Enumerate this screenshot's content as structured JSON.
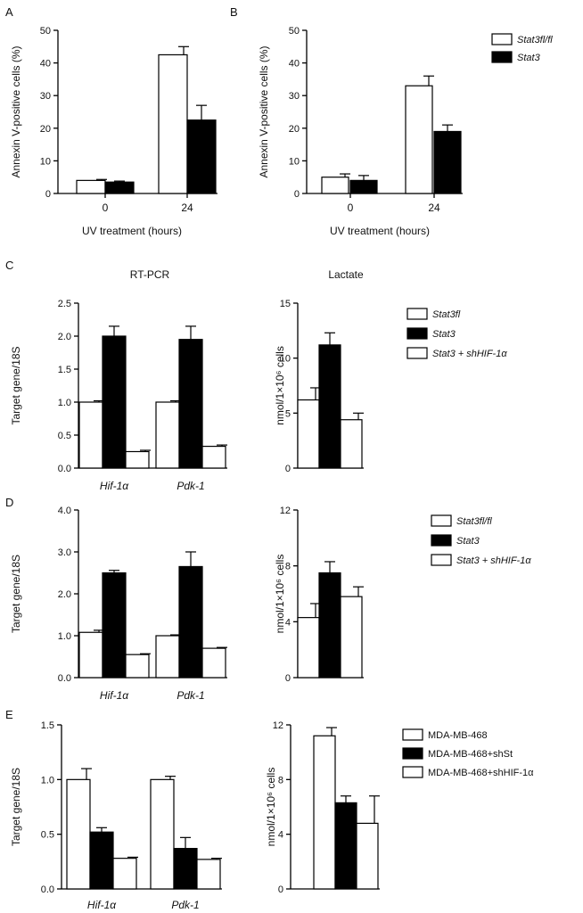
{
  "colors": {
    "white_bar": "#ffffff",
    "black_bar": "#000000",
    "stroke": "#000000"
  },
  "panels": [
    {
      "letter": "A"
    },
    {
      "letter": "B"
    },
    {
      "letter": "C"
    },
    {
      "letter": "D"
    },
    {
      "letter": "E"
    }
  ],
  "column_titles": {
    "left": "RT-PCR",
    "right": "Lactate"
  },
  "legends": {
    "AB": [
      {
        "text": "Stat3fl/fl",
        "fill": "white",
        "italic": true
      },
      {
        "text": "Stat3",
        "fill": "black",
        "italic": true
      }
    ],
    "C": [
      {
        "text": "Stat3fl",
        "fill": "white",
        "italic": true
      },
      {
        "text": "Stat3",
        "fill": "black",
        "italic": true
      },
      {
        "text": "Stat3 + shHIF-1α",
        "fill": "white",
        "italic": true
      }
    ],
    "D": [
      {
        "text": "Stat3fl/fl",
        "fill": "white",
        "italic": true
      },
      {
        "text": "Stat3",
        "fill": "black",
        "italic": true
      },
      {
        "text": "Stat3 + shHIF-1α",
        "fill": "white",
        "italic": true
      }
    ],
    "E": [
      {
        "text": "MDA-MB-468",
        "fill": "white",
        "italic": false
      },
      {
        "text": "MDA-MB-468+shSt",
        "fill": "black",
        "italic": false
      },
      {
        "text": "MDA-MB-468+shHIF-1α",
        "fill": "white",
        "italic": false
      }
    ]
  },
  "chart_data": [
    {
      "id": "A",
      "type": "bar",
      "ylabel": "Annexin V-positive cells (%)",
      "xlabel": "UV treatment (hours)",
      "categories": [
        "0",
        "24"
      ],
      "category_italic": false,
      "ylim": [
        0,
        50
      ],
      "yticks": [
        "0",
        "10",
        "20",
        "30",
        "40",
        "50"
      ],
      "series": [
        {
          "name": "Stat3fl/fl",
          "fill": "white",
          "values": [
            4,
            42.5
          ],
          "errors": [
            0.3,
            2.5
          ]
        },
        {
          "name": "Stat3",
          "fill": "black",
          "values": [
            3.5,
            22.5
          ],
          "errors": [
            0.3,
            4.5
          ]
        }
      ]
    },
    {
      "id": "B",
      "type": "bar",
      "ylabel": "Annexin V-positive cells (%)",
      "xlabel": "UV treatment (hours)",
      "categories": [
        "0",
        "24"
      ],
      "category_italic": false,
      "ylim": [
        0,
        50
      ],
      "yticks": [
        "0",
        "10",
        "20",
        "30",
        "40",
        "50"
      ],
      "series": [
        {
          "name": "Stat3fl/fl",
          "fill": "white",
          "values": [
            5,
            33
          ],
          "errors": [
            1,
            3
          ]
        },
        {
          "name": "Stat3",
          "fill": "black",
          "values": [
            4,
            19
          ],
          "errors": [
            1.5,
            2
          ]
        }
      ]
    },
    {
      "id": "C-left",
      "type": "bar",
      "ylabel": "Target gene/18S",
      "xlabel": "",
      "categories": [
        "Hif-1α",
        "Pdk-1"
      ],
      "category_italic": true,
      "ylim": [
        0,
        2.5
      ],
      "yticks": [
        "0.0",
        "0.5",
        "1.0",
        "1.5",
        "2.0",
        "2.5"
      ],
      "series": [
        {
          "name": "Stat3fl",
          "fill": "white",
          "values": [
            1.0,
            1.0
          ],
          "errors": [
            0.02,
            0.02
          ]
        },
        {
          "name": "Stat3",
          "fill": "black",
          "values": [
            2.0,
            1.95
          ],
          "errors": [
            0.15,
            0.2
          ]
        },
        {
          "name": "Stat3 + shHIF-1α",
          "fill": "white",
          "values": [
            0.25,
            0.33
          ],
          "errors": [
            0.02,
            0.02
          ]
        }
      ]
    },
    {
      "id": "C-right",
      "type": "bar",
      "ylabel": "nmol/1×10⁶ cells",
      "xlabel": "",
      "categories": [
        ""
      ],
      "category_italic": false,
      "ylim": [
        0,
        15
      ],
      "yticks": [
        "0",
        "5",
        "10",
        "15"
      ],
      "series": [
        {
          "name": "Stat3fl",
          "fill": "white",
          "values": [
            6.2
          ],
          "errors": [
            1.1
          ]
        },
        {
          "name": "Stat3",
          "fill": "black",
          "values": [
            11.2
          ],
          "errors": [
            1.1
          ]
        },
        {
          "name": "Stat3 + shHIF-1α",
          "fill": "white",
          "values": [
            4.4
          ],
          "errors": [
            0.6
          ]
        }
      ]
    },
    {
      "id": "D-left",
      "type": "bar",
      "ylabel": "Target gene/18S",
      "xlabel": "",
      "categories": [
        "Hif-1α",
        "Pdk-1"
      ],
      "category_italic": true,
      "ylim": [
        0,
        4
      ],
      "yticks": [
        "0.0",
        "1.0",
        "2.0",
        "3.0",
        "4.0"
      ],
      "series": [
        {
          "name": "Stat3fl/fl",
          "fill": "white",
          "values": [
            1.08,
            1.0
          ],
          "errors": [
            0.05,
            0.02
          ]
        },
        {
          "name": "Stat3",
          "fill": "black",
          "values": [
            2.5,
            2.65
          ],
          "errors": [
            0.06,
            0.35
          ]
        },
        {
          "name": "Stat3 + shHIF-1α",
          "fill": "white",
          "values": [
            0.55,
            0.7
          ],
          "errors": [
            0.02,
            0.02
          ]
        }
      ]
    },
    {
      "id": "D-right",
      "type": "bar",
      "ylabel": "nmol/1×10⁶ cells",
      "xlabel": "",
      "categories": [
        ""
      ],
      "category_italic": false,
      "ylim": [
        0,
        12
      ],
      "yticks": [
        "0",
        "4",
        "8",
        "12"
      ],
      "series": [
        {
          "name": "Stat3fl/fl",
          "fill": "white",
          "values": [
            4.3
          ],
          "errors": [
            1.0
          ]
        },
        {
          "name": "Stat3",
          "fill": "black",
          "values": [
            7.5
          ],
          "errors": [
            0.8
          ]
        },
        {
          "name": "Stat3 + shHIF-1α",
          "fill": "white",
          "values": [
            5.8
          ],
          "errors": [
            0.7
          ]
        }
      ]
    },
    {
      "id": "E-left",
      "type": "bar",
      "ylabel": "Target gene/18S",
      "xlabel": "",
      "categories": [
        "Hif-1α",
        "Pdk-1"
      ],
      "category_italic": true,
      "ylim": [
        0,
        1.5
      ],
      "yticks": [
        "0.0",
        "0.5",
        "1.0",
        "1.5"
      ],
      "series": [
        {
          "name": "MDA-MB-468",
          "fill": "white",
          "values": [
            1.0,
            1.0
          ],
          "errors": [
            0.1,
            0.03
          ]
        },
        {
          "name": "MDA-MB-468+shSt",
          "fill": "black",
          "values": [
            0.52,
            0.37
          ],
          "errors": [
            0.04,
            0.1
          ]
        },
        {
          "name": "MDA-MB-468+shHIF-1α",
          "fill": "white",
          "values": [
            0.28,
            0.27
          ],
          "errors": [
            0.01,
            0.01
          ]
        }
      ]
    },
    {
      "id": "E-right",
      "type": "bar",
      "ylabel": "nmol/1×10⁶ cells",
      "xlabel": "",
      "categories": [
        ""
      ],
      "category_italic": false,
      "ylim": [
        0,
        12
      ],
      "yticks": [
        "0",
        "4",
        "8",
        "12"
      ],
      "series": [
        {
          "name": "MDA-MB-468",
          "fill": "white",
          "values": [
            11.2
          ],
          "errors": [
            0.6
          ]
        },
        {
          "name": "MDA-MB-468+shSt",
          "fill": "black",
          "values": [
            6.3
          ],
          "errors": [
            0.5
          ]
        },
        {
          "name": "MDA-MB-468+shHIF-1α",
          "fill": "white",
          "values": [
            4.8
          ],
          "errors": [
            2.0
          ]
        }
      ]
    }
  ]
}
